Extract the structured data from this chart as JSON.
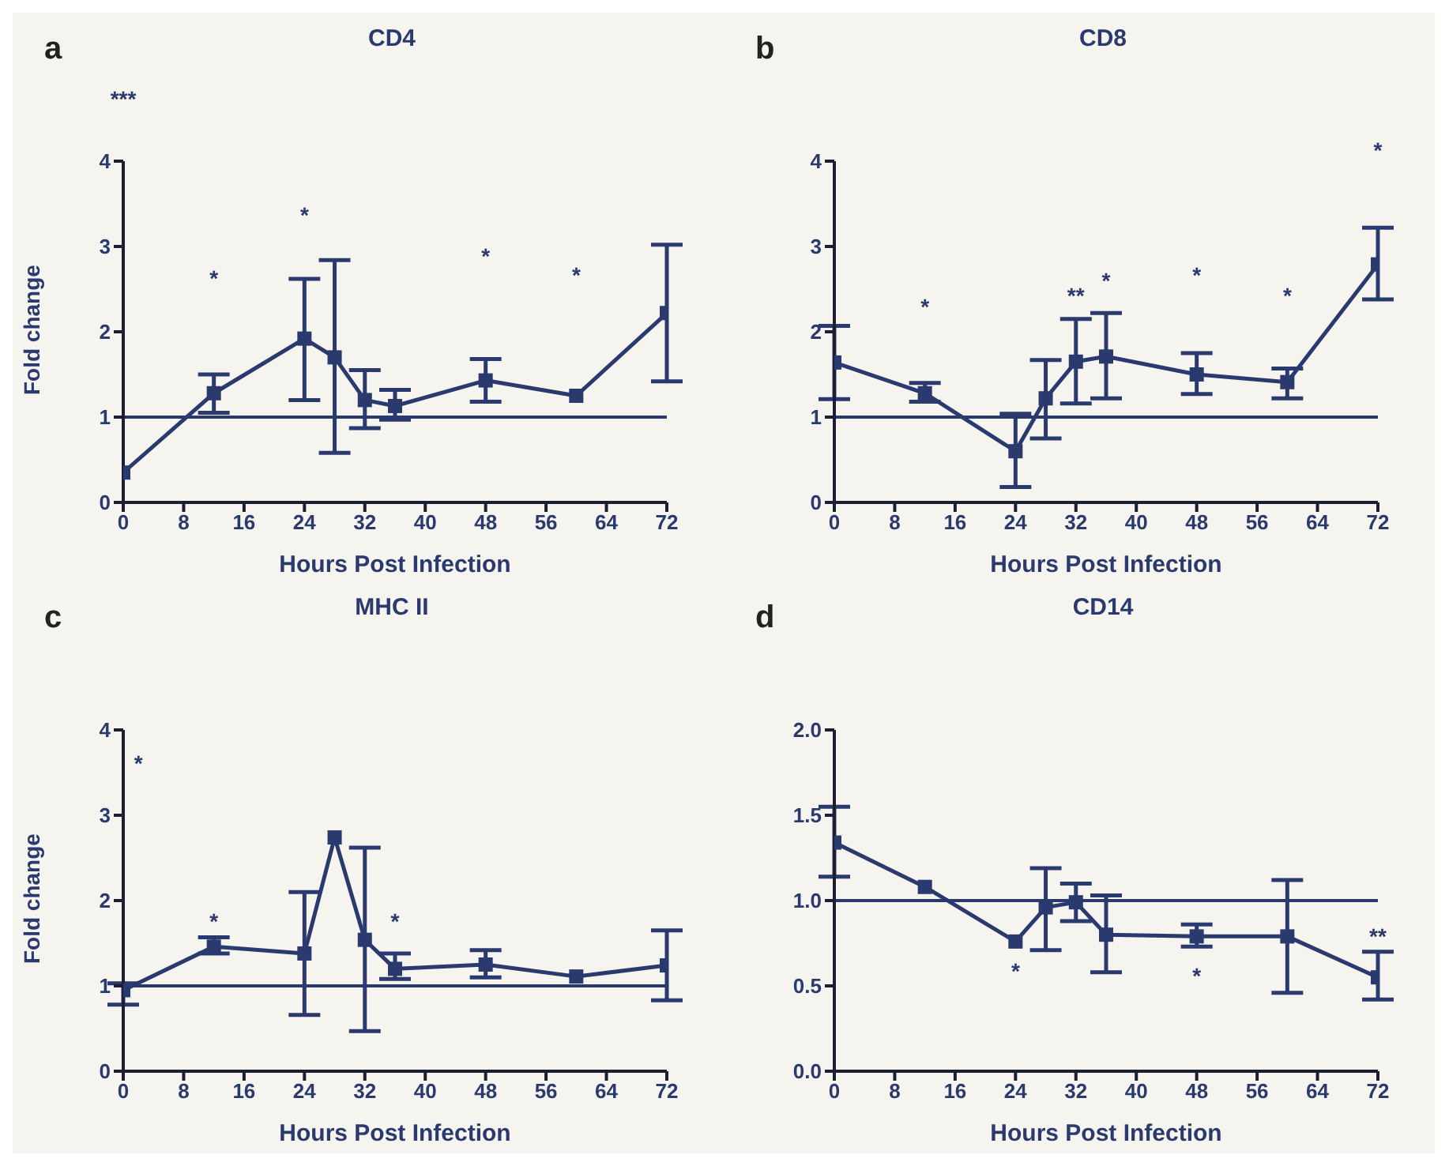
{
  "chart_data": [
    {
      "type": "line",
      "title": "CD4",
      "xlabel": "Hours Post Infection",
      "ylabel": "Fold change",
      "x": [
        0,
        12,
        24,
        28,
        32,
        36,
        48,
        60,
        72
      ],
      "series": [
        {
          "color": "#2b3a6e",
          "values": [
            0.35,
            1.28,
            1.92,
            1.7,
            1.2,
            1.13,
            1.43,
            1.25,
            2.22
          ],
          "errors": [
            null,
            [
              1.05,
              1.5
            ],
            [
              1.2,
              2.62
            ],
            [
              0.58,
              2.84
            ],
            [
              0.87,
              1.55
            ],
            [
              0.97,
              1.32
            ],
            [
              1.18,
              1.68
            ],
            null,
            [
              1.42,
              3.02
            ]
          ]
        }
      ],
      "xlim": [
        0,
        72
      ],
      "xticks": [
        0,
        8,
        16,
        24,
        32,
        40,
        48,
        56,
        64,
        72
      ],
      "ylim": [
        0,
        4
      ],
      "yticks": [
        0,
        1,
        2,
        3,
        4
      ],
      "grid": false,
      "legend": false,
      "marker": "square",
      "line_style": "solid",
      "ref_lines": [
        {
          "axis": "y",
          "value": 1,
          "color": "#2b3a6e"
        }
      ],
      "annotations": [
        "a",
        "***",
        "*",
        "*",
        "*",
        "*"
      ]
    },
    {
      "type": "line",
      "title": "CD8",
      "xlabel": "Hours Post Infection",
      "x": [
        0,
        12,
        24,
        28,
        32,
        36,
        48,
        60,
        72
      ],
      "series": [
        {
          "color": "#2b3a6e",
          "values": [
            1.64,
            1.28,
            0.6,
            1.22,
            1.65,
            1.71,
            1.5,
            1.41,
            2.79
          ],
          "errors": [
            [
              1.21,
              2.07
            ],
            [
              1.18,
              1.4
            ],
            [
              0.18,
              1.04
            ],
            [
              0.75,
              1.67
            ],
            [
              1.16,
              2.15
            ],
            [
              1.22,
              2.22
            ],
            [
              1.27,
              1.75
            ],
            [
              1.22,
              1.57
            ],
            [
              2.38,
              3.22
            ]
          ]
        }
      ],
      "xlim": [
        0,
        72
      ],
      "xticks": [
        0,
        8,
        16,
        24,
        32,
        40,
        48,
        56,
        64,
        72
      ],
      "ylim": [
        0,
        4
      ],
      "yticks": [
        0,
        1,
        2,
        3,
        4
      ],
      "grid": false,
      "legend": false,
      "marker": "square",
      "line_style": "solid",
      "ref_lines": [
        {
          "axis": "y",
          "value": 1,
          "color": "#2b3a6e"
        }
      ],
      "annotations": [
        "b",
        "*",
        "**",
        "*",
        "*",
        "*",
        "*"
      ]
    },
    {
      "type": "line",
      "title": "MHC II",
      "xlabel": "Hours Post Infection",
      "ylabel": "Fold change",
      "x": [
        0,
        12,
        24,
        28,
        32,
        36,
        48,
        60,
        72
      ],
      "series": [
        {
          "color": "#2b3a6e",
          "values": [
            0.95,
            1.46,
            1.38,
            2.74,
            1.54,
            1.2,
            1.25,
            1.11,
            1.24
          ],
          "errors": [
            [
              0.78,
              1.03
            ],
            [
              1.38,
              1.57
            ],
            [
              0.66,
              2.1
            ],
            null,
            [
              0.47,
              2.62
            ],
            [
              1.08,
              1.38
            ],
            [
              1.1,
              1.42
            ],
            null,
            [
              0.83,
              1.65
            ]
          ]
        }
      ],
      "xlim": [
        0,
        72
      ],
      "xticks": [
        0,
        8,
        16,
        24,
        32,
        40,
        48,
        56,
        64,
        72
      ],
      "ylim": [
        0,
        4
      ],
      "yticks": [
        0,
        1,
        2,
        3,
        4
      ],
      "grid": false,
      "legend": false,
      "marker": "square",
      "line_style": "solid",
      "ref_lines": [
        {
          "axis": "y",
          "value": 1,
          "color": "#2b3a6e"
        }
      ],
      "annotations": [
        "c",
        "*",
        "*",
        "*"
      ]
    },
    {
      "type": "line",
      "title": "CD14",
      "xlabel": "Hours Post Infection",
      "x": [
        0,
        12,
        24,
        28,
        32,
        36,
        48,
        60,
        72
      ],
      "series": [
        {
          "color": "#2b3a6e",
          "values": [
            1.34,
            1.08,
            0.76,
            0.96,
            0.99,
            0.8,
            0.79,
            0.79,
            0.55
          ],
          "errors": [
            [
              1.14,
              1.55
            ],
            null,
            null,
            [
              0.71,
              1.19
            ],
            [
              0.88,
              1.1
            ],
            [
              0.58,
              1.03
            ],
            [
              0.73,
              0.86
            ],
            [
              0.46,
              1.12
            ],
            [
              0.42,
              0.7
            ]
          ]
        }
      ],
      "xlim": [
        0,
        72
      ],
      "xticks": [
        0,
        8,
        16,
        24,
        32,
        40,
        48,
        56,
        64,
        72
      ],
      "ylim": [
        0,
        2
      ],
      "yticks": [
        {
          "value": 0,
          "label": "0.0"
        },
        {
          "value": 0.5,
          "label": "0.5"
        },
        {
          "value": 1,
          "label": "1.0"
        },
        {
          "value": 1.5,
          "label": "1.5"
        },
        {
          "value": 2,
          "label": "2.0"
        }
      ],
      "grid": false,
      "legend": false,
      "marker": "square",
      "line_style": "solid",
      "ref_lines": [
        {
          "axis": "y",
          "value": 1,
          "color": "#2b3a6e"
        }
      ],
      "annotations": [
        "d",
        "*",
        "*",
        "**"
      ]
    }
  ]
}
